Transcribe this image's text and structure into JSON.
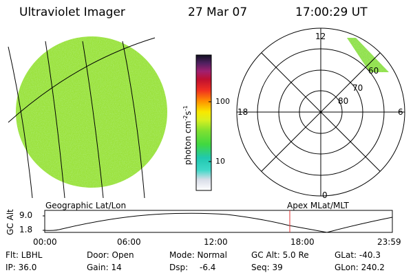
{
  "header": {
    "instrument": "Ultraviolet Imager",
    "date": "27 Mar 07",
    "time": "17:00:29 UT"
  },
  "colorbar": {
    "unit_main": "photon cm",
    "unit_sup1": "-2",
    "unit_mid": "s",
    "unit_sup2": "-1",
    "ticks": [
      "100",
      "10"
    ]
  },
  "polar": {
    "mlt_labels": {
      "top": "12",
      "right": "6",
      "bottom": "0",
      "left": "18"
    },
    "lat_labels": [
      "60",
      "70",
      "80"
    ]
  },
  "grid_labels": {
    "left": "Geographic Lat/Lon",
    "right": "Apex MLat/MLT"
  },
  "altitude_plot": {
    "ylabel": "GC Alt",
    "yticks": [
      "9.0",
      "1.8"
    ],
    "xticks": [
      "00:00",
      "06:00",
      "12:00",
      "18:00",
      "23:59"
    ],
    "marker_time": "17:00",
    "marker_color": "#e03030"
  },
  "info": {
    "row1": [
      "Flt: LBHL",
      "Door: Open",
      "Mode: Normal",
      "GC Alt: 5.0 Re",
      "GLat: -40.3"
    ],
    "row2": [
      "IP: 36.0",
      "Gain: 14",
      "Dsp:",
      "-6.4",
      "Seq: 39",
      "GLon: 240.2"
    ]
  },
  "colors": {
    "disk_green": "#9be23c",
    "auroral_green": "#8fe04a"
  }
}
